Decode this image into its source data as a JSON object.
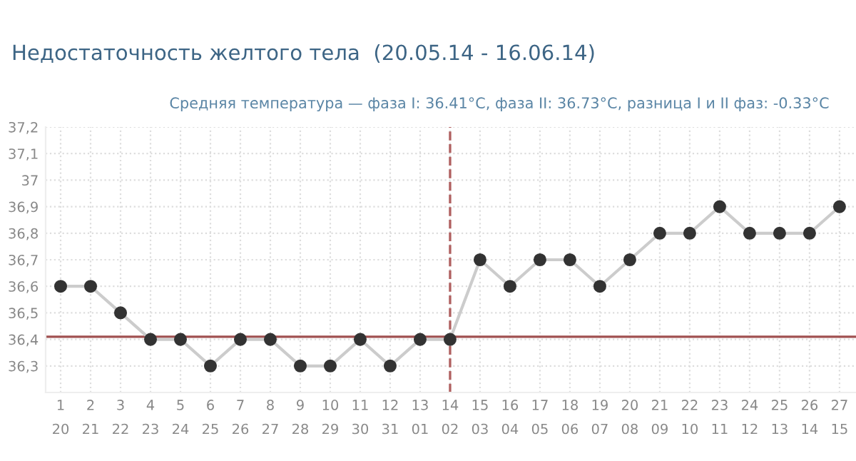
{
  "chart_data": {
    "type": "line",
    "title": "Недостаточность желтого тела  (20.05.14 - 16.06.14)",
    "subtitle": "Средняя температура — фаза I: 36.41°C, фаза II: 36.73°C, разница I и II фаз: -0.33°C",
    "categories": [
      "1\n20",
      "2\n21",
      "3\n22",
      "4\n23",
      "5\n24",
      "6\n25",
      "7\n26",
      "8\n27",
      "9\n28",
      "10\n29",
      "11\n30",
      "12\n31",
      "13\n01",
      "14\n02",
      "15\n03",
      "16\n04",
      "17\n05",
      "18\n06",
      "19\n07",
      "20\n08",
      "21\n09",
      "22\n10",
      "23\n11",
      "24\n12",
      "25\n13",
      "26\n14",
      "27\n15"
    ],
    "series": [
      {
        "color": "#cccccc",
        "values": [
          36.6,
          36.6,
          36.5,
          36.4,
          36.4,
          36.3,
          36.4,
          36.4,
          36.3,
          36.3,
          36.4,
          36.3,
          36.4,
          36.4,
          36.7,
          36.6,
          36.7,
          36.7,
          36.6,
          36.7,
          36.8,
          36.8,
          36.9,
          36.8,
          36.8,
          36.8,
          36.9
        ]
      }
    ],
    "marker": "circle",
    "line_style": "solid",
    "ylim": [
      36.2,
      37.2
    ],
    "yticks": [
      {
        "value": 36.3,
        "label": "36,3"
      },
      {
        "value": 36.4,
        "label": "36,4"
      },
      {
        "value": 36.5,
        "label": "36,5"
      },
      {
        "value": 36.6,
        "label": "36,6"
      },
      {
        "value": 36.7,
        "label": "36,7"
      },
      {
        "value": 36.8,
        "label": "36,8"
      },
      {
        "value": 36.9,
        "label": "36,9"
      },
      {
        "value": 37,
        "label": "37"
      },
      {
        "value": 37.1,
        "label": "37,1"
      },
      {
        "value": 37.2,
        "label": "37,2"
      }
    ],
    "ref_lines": [
      {
        "axis": "y",
        "value": 36.41,
        "color": "#a05050",
        "line_style": "solid"
      },
      {
        "axis": "x",
        "value": "14\n02",
        "color": "#b06060",
        "line_style": "dashed"
      }
    ],
    "grid": true,
    "legend": false
  }
}
